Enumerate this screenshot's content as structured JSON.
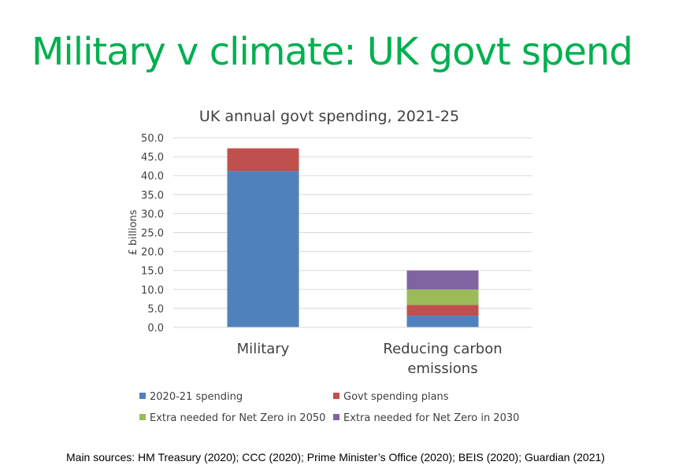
{
  "slide": {
    "title": "Military v climate: UK govt spend",
    "title_color": "#00B050",
    "sources": "Main sources: HM Treasury (2020); CCC (2020); Prime Minister’s Office (2020); BEIS (2020); Guardian (2021)"
  },
  "chart_data": {
    "type": "bar",
    "stacked": true,
    "title": "UK annual govt spending, 2021-25",
    "ylabel": "£ billions",
    "xlabel": "",
    "ylim": [
      0,
      50
    ],
    "ytick_step": 5,
    "ytick_labels": [
      "0.0",
      "5.0",
      "10.0",
      "15.0",
      "20.0",
      "25.0",
      "30.0",
      "35.0",
      "40.0",
      "45.0",
      "50.0"
    ],
    "grid": true,
    "legend_position": "bottom",
    "categories": [
      {
        "label_lines": [
          "Military"
        ]
      },
      {
        "label_lines": [
          "Reducing carbon",
          "emissions"
        ]
      }
    ],
    "series": [
      {
        "name": "2020-21 spending",
        "color": "#4F81BD",
        "values": [
          41.2,
          3.1
        ]
      },
      {
        "name": "Govt spending plans",
        "color": "#C0504D",
        "values": [
          6.0,
          2.8
        ]
      },
      {
        "name": "Extra needed for Net Zero in 2050",
        "color": "#9BBB59",
        "values": [
          0,
          4.1
        ]
      },
      {
        "name": "Extra needed for Net Zero in 2030",
        "color": "#8064A2",
        "values": [
          0,
          5.0
        ]
      }
    ]
  }
}
